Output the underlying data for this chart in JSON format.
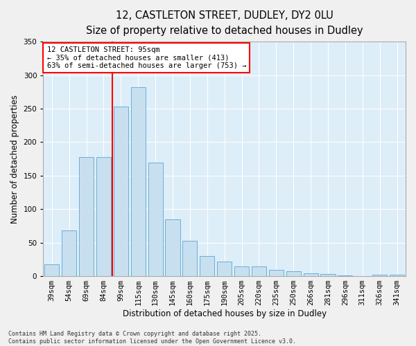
{
  "title_line1": "12, CASTLETON STREET, DUDLEY, DY2 0LU",
  "title_line2": "Size of property relative to detached houses in Dudley",
  "xlabel": "Distribution of detached houses by size in Dudley",
  "ylabel": "Number of detached properties",
  "categories": [
    "39sqm",
    "54sqm",
    "69sqm",
    "84sqm",
    "99sqm",
    "115sqm",
    "130sqm",
    "145sqm",
    "160sqm",
    "175sqm",
    "190sqm",
    "205sqm",
    "220sqm",
    "235sqm",
    "250sqm",
    "266sqm",
    "281sqm",
    "296sqm",
    "311sqm",
    "326sqm",
    "341sqm"
  ],
  "values": [
    18,
    68,
    178,
    178,
    253,
    282,
    170,
    85,
    53,
    30,
    22,
    15,
    15,
    9,
    7,
    4,
    3,
    1,
    0,
    2,
    2
  ],
  "bar_color": "#c8dff0",
  "bar_edge_color": "#6aaed6",
  "background_color": "#ddeef8",
  "fig_background": "#f0f0f0",
  "vline_color": "red",
  "vline_pos": 3.5,
  "annotation_text_line1": "12 CASTLETON STREET: 95sqm",
  "annotation_text_line2": "← 35% of detached houses are smaller (413)",
  "annotation_text_line3": "63% of semi-detached houses are larger (753) →",
  "annotation_fontsize": 7.5,
  "ylim": [
    0,
    350
  ],
  "yticks": [
    0,
    50,
    100,
    150,
    200,
    250,
    300,
    350
  ],
  "grid_color": "#ffffff",
  "footnote": "Contains HM Land Registry data © Crown copyright and database right 2025.\nContains public sector information licensed under the Open Government Licence v3.0.",
  "title_fontsize": 10.5,
  "subtitle_fontsize": 9.5,
  "ylabel_fontsize": 8.5,
  "xlabel_fontsize": 8.5,
  "tick_fontsize": 7.5,
  "footnote_fontsize": 6.0
}
